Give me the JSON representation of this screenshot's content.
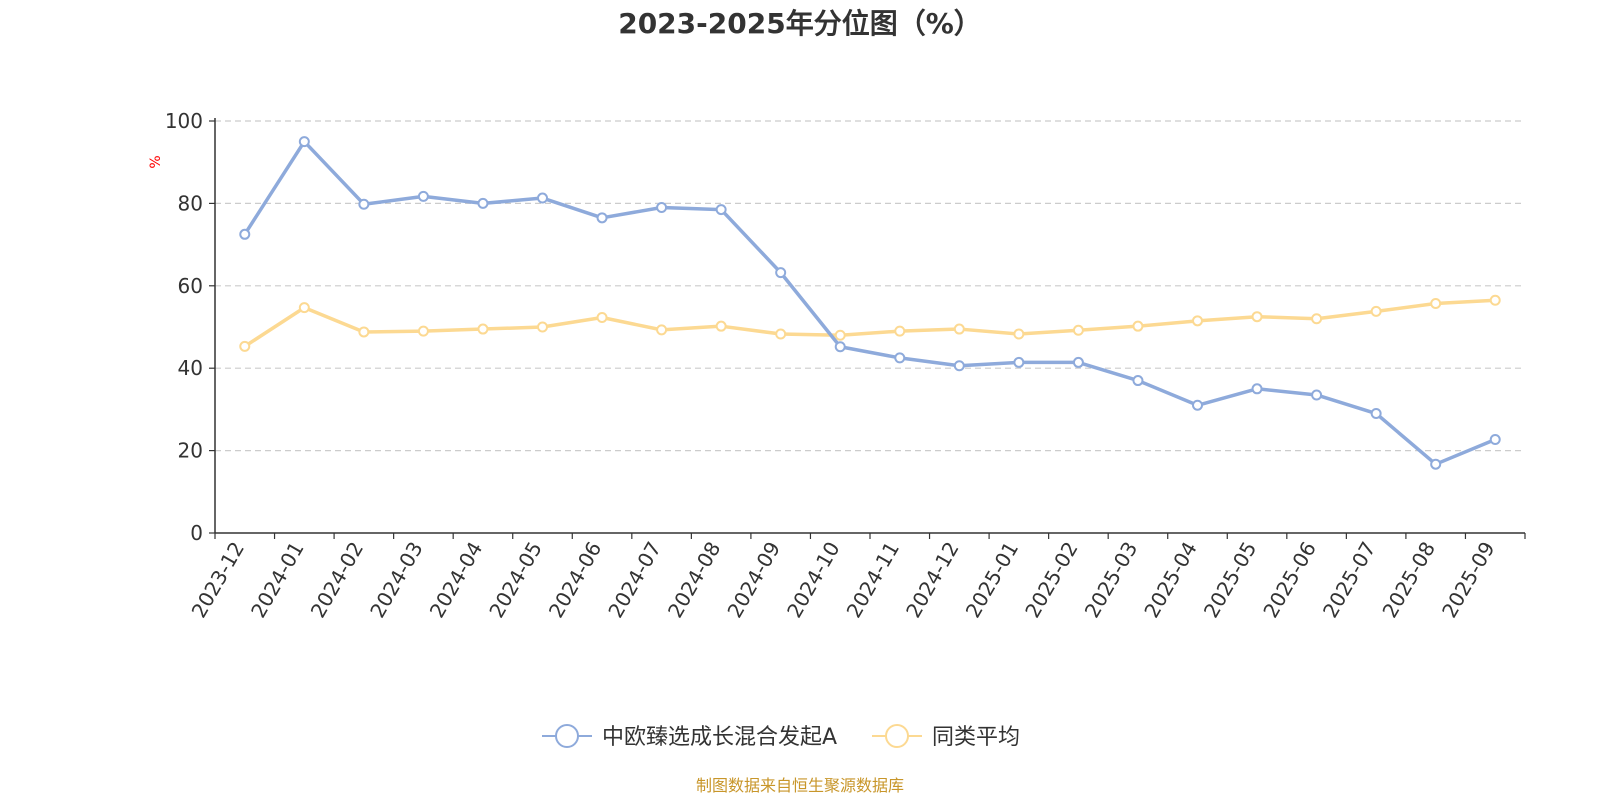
{
  "chart_data": {
    "type": "line",
    "title": "2023-2025年分位图（%）",
    "ylabel": "%",
    "xlabel": "",
    "categories": [
      "2023-12",
      "2024-01",
      "2024-02",
      "2024-03",
      "2024-04",
      "2024-05",
      "2024-06",
      "2024-07",
      "2024-08",
      "2024-09",
      "2024-10",
      "2024-11",
      "2024-12",
      "2025-01",
      "2025-02",
      "2025-03",
      "2025-04",
      "2025-05",
      "2025-06",
      "2025-07",
      "2025-08",
      "2025-09"
    ],
    "yticks": [
      "0",
      "20",
      "40",
      "60",
      "80",
      "100"
    ],
    "ylim": [
      0,
      100
    ],
    "grid": true,
    "legend_position": "bottom-center",
    "series": [
      {
        "name": "中欧臻选成长混合发起A",
        "color": "#8eaadb",
        "values": [
          72.5,
          95.0,
          79.8,
          81.7,
          80.0,
          81.3,
          76.5,
          79.0,
          78.5,
          63.2,
          45.2,
          42.5,
          40.6,
          41.4,
          41.4,
          37.0,
          31.0,
          35.0,
          33.5,
          29.0,
          16.7,
          22.7
        ]
      },
      {
        "name": "同类平均",
        "color": "#fcd992",
        "values": [
          45.3,
          54.7,
          48.8,
          49.0,
          49.5,
          50.0,
          52.3,
          49.3,
          50.2,
          48.3,
          48.0,
          49.0,
          49.5,
          48.3,
          49.2,
          50.2,
          51.5,
          52.5,
          52.0,
          53.8,
          55.7,
          56.5
        ]
      }
    ],
    "source": "制图数据来自恒生聚源数据库"
  }
}
